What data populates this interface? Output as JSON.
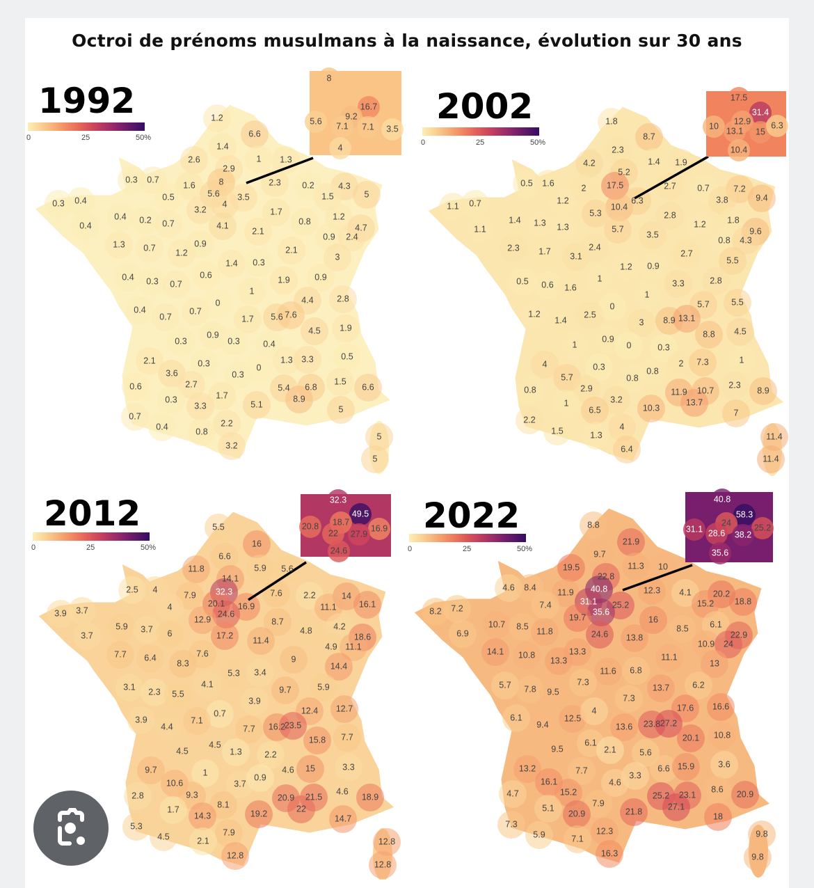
{
  "title": "Octroi de prénoms musulmans à la naissance, évolution sur 30 ans",
  "legend": {
    "ticks": [
      "0",
      "25",
      "50%"
    ],
    "min": 0,
    "max": 50
  },
  "lens_button": {
    "icon": "camera-lens-icon"
  },
  "maps": [
    {
      "year": "1992",
      "labels": [
        "1.2",
        "6.6",
        "1.4",
        "2.6",
        "1",
        "1.3",
        "2.9",
        "0.3",
        "0.7",
        "1.6",
        "8",
        "2.3",
        "0.2",
        "4.3",
        "0.5",
        "5.6",
        "3.5",
        "1.5",
        "5",
        "0.3",
        "0.4",
        "4",
        "3.2",
        "1.7",
        "0.4",
        "0.2",
        "0.7",
        "4.1",
        "0.8",
        "1.2",
        "0.4",
        "2.1",
        "4.7",
        "0.9",
        "2.4",
        "1.3",
        "0.7",
        "1.2",
        "0.9",
        "2.1",
        "3",
        "1.4",
        "0.3",
        "0.4",
        "0.3",
        "0.7",
        "0.6",
        "1.9",
        "0.9",
        "1",
        "0.4",
        "0.7",
        "0.7",
        "0",
        "4.4",
        "2.8",
        "1.7",
        "5.6",
        "7.6",
        "4.5",
        "1.9",
        "0.3",
        "0.9",
        "0.3",
        "0.4",
        "2.1",
        "0.3",
        "1.3",
        "3.3",
        "0.5",
        "3.6",
        "0.3",
        "0",
        "0.6",
        "2.7",
        "1.5",
        "6.6",
        "5.4",
        "6.8",
        "1.7",
        "0.3",
        "8.9",
        "3.3",
        "5.1",
        "5",
        "0.7",
        "0.4",
        "0.8",
        "2.2",
        "3.2",
        "5",
        "5"
      ],
      "inset": [
        "8",
        "16.7",
        "9.2",
        "5.6",
        "7.1",
        "7.1",
        "3.5",
        "4"
      ]
    },
    {
      "year": "2002",
      "labels": [
        "1.8",
        "8.7",
        "2.3",
        "4.2",
        "1.4",
        "1.9",
        "5.2",
        "0.5",
        "1.6",
        "2",
        "17.5",
        "2.7",
        "0.7",
        "7.2",
        "3.8",
        "9.4",
        "1.1",
        "0.7",
        "1.2",
        "10.4",
        "6.3",
        "5.3",
        "2.8",
        "1.8",
        "1.1",
        "1.4",
        "1.3",
        "1.3",
        "5.7",
        "1.2",
        "9.6",
        "3.5",
        "0.8",
        "4.3",
        "2.3",
        "1.7",
        "3.1",
        "2.4",
        "2.7",
        "5.5",
        "1.2",
        "0.9",
        "0.5",
        "0.6",
        "1.6",
        "1",
        "3.3",
        "2.8",
        "1",
        "0",
        "5.7",
        "5.5",
        "1.2",
        "1.4",
        "2.5",
        "3",
        "8.9",
        "13.1",
        "8.8",
        "4.5",
        "1",
        "0.9",
        "0",
        "0.3",
        "4",
        "0.3",
        "2",
        "7.3",
        "1",
        "5.7",
        "0.8",
        "0.8",
        "0.8",
        "2.9",
        "11.9",
        "10.7",
        "2.3",
        "8.9",
        "13.7",
        "3.2",
        "1",
        "6.5",
        "10.3",
        "7",
        "2.2",
        "1.5",
        "1.3",
        "4",
        "11.4",
        "6.4",
        "11.4"
      ],
      "inset": [
        "17.5",
        "31.4",
        "10",
        "12.9",
        "13.1",
        "15",
        "6.3",
        "10.4"
      ]
    },
    {
      "year": "2012",
      "labels": [
        "5.5",
        "16",
        "6.6",
        "11.8",
        "5.9",
        "5.6",
        "14.1",
        "2.5",
        "4",
        "7.9",
        "32.3",
        "7.6",
        "2.2",
        "14",
        "4",
        "20.1",
        "16.9",
        "11.1",
        "16.1",
        "3.9",
        "3.7",
        "24.6",
        "12.9",
        "8.7",
        "5.9",
        "3.7",
        "6",
        "4.8",
        "4.2",
        "3.7",
        "17.2",
        "11.4",
        "18.6",
        "4.9",
        "11.1",
        "7.7",
        "6.4",
        "7.6",
        "8.3",
        "9",
        "14.4",
        "5.3",
        "3.4",
        "4.1",
        "3.1",
        "2.3",
        "5.5",
        "9.7",
        "5.9",
        "3.9",
        "0.7",
        "12.4",
        "12.7",
        "3.9",
        "4.4",
        "7.1",
        "7.7",
        "16.2",
        "23.5",
        "7.7",
        "15.8",
        "4.5",
        "4.5",
        "1.3",
        "2.2",
        "3.3",
        "9.7",
        "1",
        "4.6",
        "15",
        "10.6",
        "3.7",
        "0.9",
        "4.6",
        "9.3",
        "20.9",
        "21.5",
        "18.9",
        "2.8",
        "22",
        "1.7",
        "8.1",
        "19.2",
        "14.7",
        "14.3",
        "5.3",
        "4.5",
        "7.9",
        "2.1",
        "12.8",
        "12.8",
        "12.8"
      ],
      "inset": [
        "32.3",
        "49.5",
        "20.8",
        "18.7",
        "16.9",
        "22",
        "27.9",
        "24.6"
      ]
    },
    {
      "year": "2022",
      "labels": [
        "8.8",
        "21.9",
        "9.7",
        "19.5",
        "22.8",
        "11.3",
        "10",
        "4.6",
        "8.4",
        "11.9",
        "40.8",
        "12.3",
        "4.1",
        "20.2",
        "18.8",
        "7.4",
        "31.1",
        "25.2",
        "15.2",
        "8.2",
        "7.2",
        "35.6",
        "19.7",
        "16",
        "8.5",
        "6.1",
        "22.9",
        "6.9",
        "10.7",
        "8.5",
        "11.8",
        "24.6",
        "13.8",
        "10.9",
        "24",
        "14.1",
        "10.8",
        "13.3",
        "13.3",
        "11.1",
        "13",
        "11.6",
        "6.8",
        "5.7",
        "7.8",
        "9.5",
        "7.3",
        "13.7",
        "6.2",
        "7.3",
        "17.6",
        "16.6",
        "6.1",
        "12.5",
        "4",
        "9.4",
        "13.6",
        "23.8",
        "27.2",
        "20.1",
        "10.8",
        "9.5",
        "6.1",
        "2.1",
        "5.6",
        "13.2",
        "7.7",
        "3.3",
        "6.6",
        "15.9",
        "3.6",
        "16.1",
        "4.6",
        "4.7",
        "15.2",
        "8.6",
        "20.9",
        "25.2",
        "23.1",
        "5.1",
        "7.9",
        "27.1",
        "20.9",
        "21.8",
        "18",
        "7.3",
        "12.3",
        "5.9",
        "7.1",
        "9.8",
        "16.3",
        "9.8"
      ],
      "inset": [
        "40.8",
        "58.3",
        "31.1",
        "24",
        "25.2",
        "28.6",
        "38.2",
        "35.6"
      ]
    }
  ]
}
